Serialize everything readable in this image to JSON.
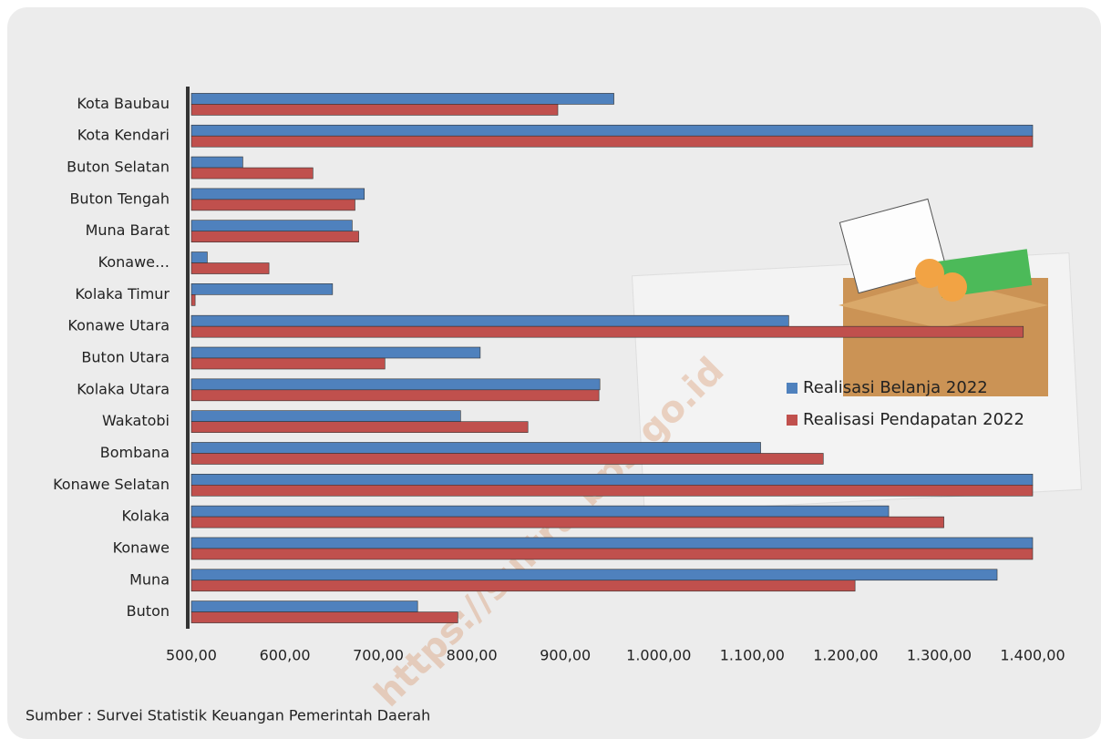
{
  "chart_data": {
    "type": "bar",
    "orientation": "horizontal",
    "categories": [
      "Kota Baubau",
      "Kota Kendari",
      "Buton Selatan",
      "Buton Tengah",
      "Muna Barat",
      "Konawe…",
      "Kolaka Timur",
      "Konawe Utara",
      "Buton Utara",
      "Kolaka Utara",
      "Wakatobi",
      "Bombana",
      "Konawe Selatan",
      "Kolaka",
      "Konawe",
      "Muna",
      "Buton"
    ],
    "series": [
      {
        "name": "Realisasi Belanja 2022",
        "color": "#4f81bd",
        "values": [
          952,
          1400,
          555,
          685,
          672,
          517,
          651,
          1139,
          809,
          937,
          788,
          1109,
          1400,
          1246,
          1400,
          1362,
          742
        ]
      },
      {
        "name": "Realisasi Pendapatan 2022",
        "color": "#c0504d",
        "values": [
          892,
          1400,
          630,
          675,
          679,
          583,
          504,
          1390,
          707,
          936,
          860,
          1176,
          1400,
          1305,
          1400,
          1210,
          785
        ]
      }
    ],
    "xlim": [
      500,
      1400
    ],
    "xticks": [
      {
        "value": 500,
        "label": "500,00"
      },
      {
        "value": 600,
        "label": "600,00"
      },
      {
        "value": 700,
        "label": "700,00"
      },
      {
        "value": 800,
        "label": "800,00"
      },
      {
        "value": 900,
        "label": "900,00"
      },
      {
        "value": 1000,
        "label": "1.000,00"
      },
      {
        "value": 1100,
        "label": "1.100,00"
      },
      {
        "value": 1200,
        "label": "1.200,00"
      },
      {
        "value": 1300,
        "label": "1.300,00"
      },
      {
        "value": 1400,
        "label": "1.400,00"
      }
    ],
    "grid": false,
    "legend": "right",
    "source": "Sumber : Survei Statistik Keuangan Pemerintah Daerah",
    "watermark": "https://sultra.bps.go.id"
  }
}
